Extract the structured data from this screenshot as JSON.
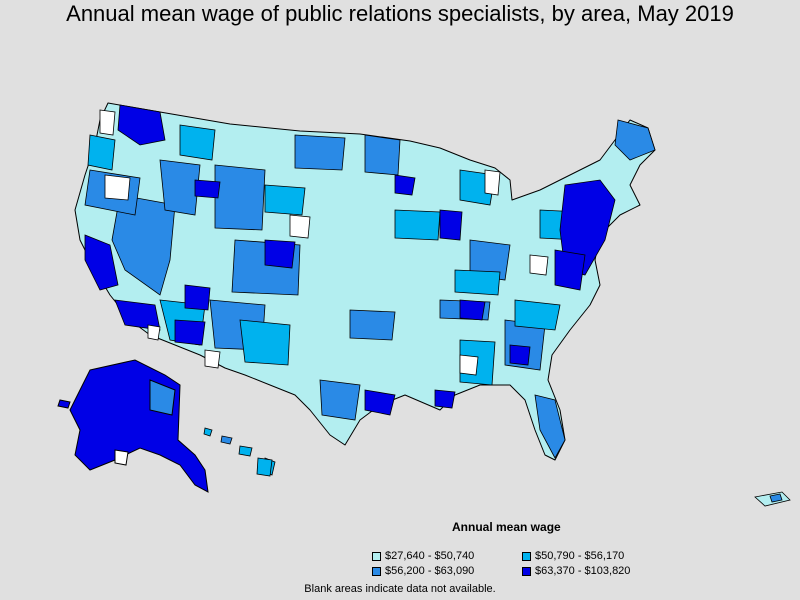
{
  "title": "Annual mean wage of public relations specialists, by area, May 2019",
  "legend": {
    "title": "Annual mean wage",
    "items": [
      {
        "label": "$27,640 - $50,740",
        "color": "#b3eef0"
      },
      {
        "label": "$50,790 - $56,170",
        "color": "#00b2ee"
      },
      {
        "label": "$56,200 - $63,090",
        "color": "#2a8ae6"
      },
      {
        "label": "$63,370 - $103,820",
        "color": "#0000e6"
      }
    ]
  },
  "footnote": "Blank areas indicate data not available.",
  "colors": {
    "background": "#e0e0e0",
    "no_data": "#ffffff",
    "border": "#000000"
  }
}
